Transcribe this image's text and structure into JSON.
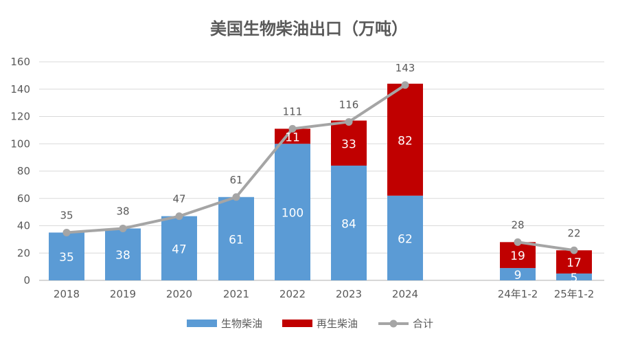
{
  "chart_data": {
    "type": "bar",
    "stacked": true,
    "title": "美国生物柴油出口（万吨）",
    "categories": [
      "2018",
      "2019",
      "2020",
      "2021",
      "2022",
      "2023",
      "2024",
      "24年1-2",
      "25年1-2"
    ],
    "series": [
      {
        "name": "生物柴油",
        "type": "bar",
        "color": "#5B9BD5",
        "values": [
          35,
          38,
          47,
          61,
          100,
          84,
          62,
          9,
          5
        ]
      },
      {
        "name": "再生柴油",
        "type": "bar",
        "color": "#C00000",
        "values": [
          null,
          null,
          null,
          null,
          11,
          33,
          82,
          19,
          17
        ]
      },
      {
        "name": "合计",
        "type": "line",
        "color": "#A5A5A5",
        "values": [
          35,
          38,
          47,
          61,
          111,
          116,
          143,
          28,
          22
        ]
      }
    ],
    "ylim": [
      0,
      160
    ],
    "yticks": [
      0,
      20,
      40,
      60,
      80,
      100,
      120,
      140,
      160
    ],
    "grid": true,
    "legend": "bottom"
  }
}
